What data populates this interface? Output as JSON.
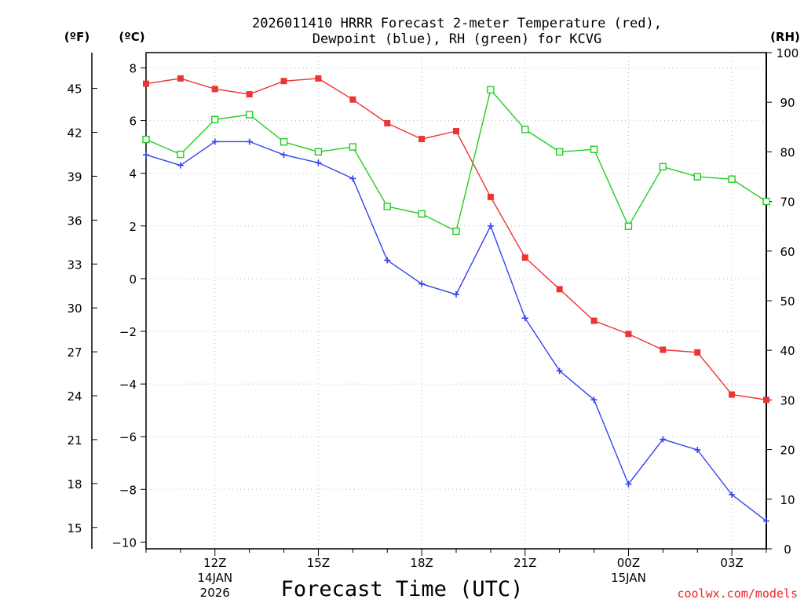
{
  "chart_data": {
    "type": "line",
    "title": "2026011410 HRRR Forecast 2-meter Temperature (red), Dewpoint (blue), RH (green) for KCVG",
    "title_lines": [
      "2026011410 HRRR Forecast 2-meter Temperature (red),",
      "Dewpoint (blue), RH (green) for KCVG"
    ],
    "xlabel": "Forecast Time (UTC)",
    "unit_labels": {
      "fahrenheit": "(ºF)",
      "celsius": "(ºC)",
      "rh": "(RH)"
    },
    "credit": "coolwx.com/models",
    "x_hours": [
      10,
      11,
      12,
      13,
      14,
      15,
      16,
      17,
      18,
      19,
      20,
      21,
      22,
      23,
      24,
      25,
      26,
      27,
      28
    ],
    "x_ticks": [
      {
        "hour": 12,
        "lines": [
          "12Z",
          "14JAN",
          "2026"
        ]
      },
      {
        "hour": 15,
        "lines": [
          "15Z"
        ]
      },
      {
        "hour": 18,
        "lines": [
          "18Z"
        ]
      },
      {
        "hour": 21,
        "lines": [
          "21Z"
        ]
      },
      {
        "hour": 24,
        "lines": [
          "00Z",
          "15JAN"
        ]
      },
      {
        "hour": 27,
        "lines": [
          "03Z"
        ]
      }
    ],
    "xlim": [
      10,
      28
    ],
    "ylim_celsius": [
      -10,
      8.5
    ],
    "celsius_ticks": [
      8,
      6,
      4,
      2,
      0,
      -2,
      -4,
      -6,
      -8,
      -10
    ],
    "celsius_tick_labels": [
      "8",
      "6",
      "4",
      "2",
      "0",
      "−2",
      "−4",
      "−6",
      "−8",
      "−10"
    ],
    "fahrenheit_ticks": [
      45,
      42,
      39,
      36,
      33,
      30,
      27,
      24,
      21,
      18,
      15
    ],
    "ylim_rh": [
      0,
      100
    ],
    "rh_ticks": [
      100,
      90,
      80,
      70,
      60,
      50,
      40,
      30,
      20,
      10,
      0
    ],
    "series": [
      {
        "name": "Temperature",
        "axis": "celsius",
        "color": "#ee3333",
        "marker": "filled-square",
        "values": [
          7.4,
          7.6,
          7.2,
          7.0,
          7.5,
          7.6,
          6.8,
          5.9,
          5.3,
          5.6,
          3.1,
          0.8,
          -0.4,
          -1.6,
          -2.1,
          -2.7,
          -2.8,
          -4.4,
          -4.6
        ]
      },
      {
        "name": "Dewpoint",
        "axis": "celsius",
        "color": "#3344ee",
        "marker": "plus",
        "values": [
          4.7,
          4.3,
          5.2,
          5.2,
          4.7,
          4.4,
          3.8,
          0.7,
          -0.2,
          -0.6,
          2.0,
          -1.5,
          -3.5,
          -4.6,
          -7.8,
          -6.1,
          -6.5,
          -8.2,
          -9.2
        ]
      },
      {
        "name": "RH",
        "axis": "rh",
        "color": "#22cc22",
        "marker": "open-square",
        "values": [
          82.5,
          79.5,
          86.5,
          87.5,
          82.0,
          80.0,
          81.0,
          69.0,
          67.5,
          64.0,
          92.5,
          84.5,
          80.0,
          80.5,
          65.0,
          77.0,
          75.0,
          74.5,
          70.0
        ]
      }
    ]
  }
}
